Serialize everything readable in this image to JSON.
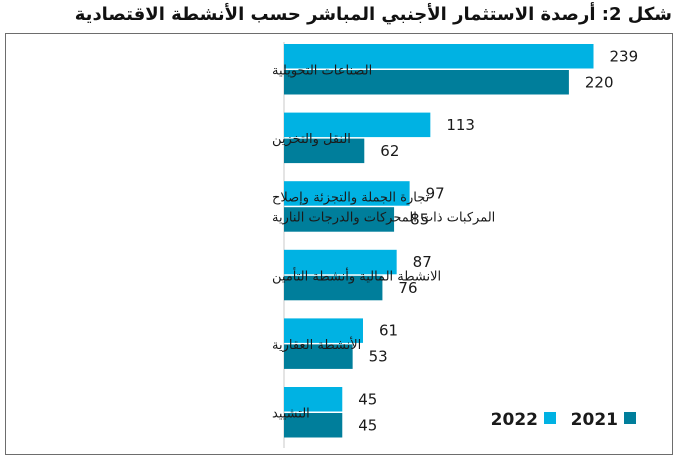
{
  "chart_data": {
    "type": "bar",
    "orientation": "horizontal",
    "title": "شكل 2: أرصدة الاستثمار الأجنبي المباشر حسب الأنشطة الاقتصادية",
    "categories": [
      [
        "الصناعات التحويلية"
      ],
      [
        "النقل والتخزين"
      ],
      [
        "تجارة الجملة والتجزئة وإصلاح",
        "المركبات ذات المحركات والدرجات النارية"
      ],
      [
        "الانشطة المالية وأنشطة التأمين"
      ],
      [
        "الأنشطة العقارية"
      ],
      [
        "التشييد"
      ]
    ],
    "series": [
      {
        "name": "2022",
        "values": [
          239,
          113,
          97,
          87,
          61,
          45
        ],
        "color": "#00b2e3"
      },
      {
        "name": "2021",
        "values": [
          220,
          62,
          85,
          76,
          53,
          45
        ],
        "color": "#007e9b"
      }
    ],
    "xlim": [
      0,
      260
    ],
    "legend_position": "bottom-right",
    "grid": false,
    "value_labels": true
  }
}
